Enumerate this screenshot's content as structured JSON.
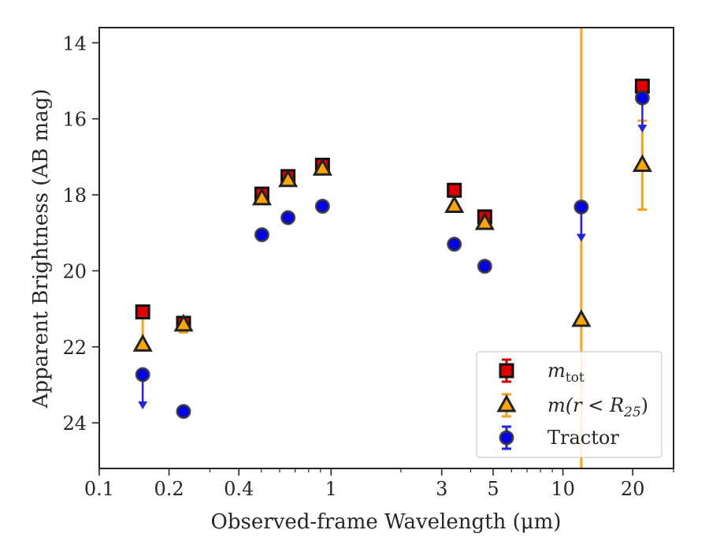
{
  "chart_data": {
    "type": "scatter",
    "xlabel": "Observed-frame Wavelength (μm)",
    "ylabel": "Apparent Brightness (AB mag)",
    "xscale": "log",
    "xlim": [
      0.1,
      30
    ],
    "ylim": [
      25.2,
      13.6
    ],
    "y_inverted": true,
    "grid": false,
    "legend_position": "bottom-right",
    "x_ticks": [
      {
        "value": 0.1,
        "label": "0.1"
      },
      {
        "value": 0.2,
        "label": "0.2"
      },
      {
        "value": 0.4,
        "label": "0.4"
      },
      {
        "value": 1,
        "label": "1"
      },
      {
        "value": 3,
        "label": "3"
      },
      {
        "value": 5,
        "label": "5"
      },
      {
        "value": 10,
        "label": "10"
      },
      {
        "value": 20,
        "label": "20"
      }
    ],
    "y_ticks": [
      {
        "value": 14,
        "label": "14"
      },
      {
        "value": 16,
        "label": "16"
      },
      {
        "value": 18,
        "label": "18"
      },
      {
        "value": 20,
        "label": "20"
      },
      {
        "value": 22,
        "label": "22"
      },
      {
        "value": 24,
        "label": "24"
      }
    ],
    "series": [
      {
        "key": "mtot",
        "legend_main": "m",
        "legend_sub": "tot",
        "marker": "square",
        "face_color": "#e00000",
        "edge_color": "#111111",
        "errbar_color": "#d40000",
        "points": [
          {
            "x": 0.154,
            "y": 21.08
          },
          {
            "x": 0.231,
            "y": 21.38
          },
          {
            "x": 0.503,
            "y": 17.98
          },
          {
            "x": 0.652,
            "y": 17.52
          },
          {
            "x": 0.918,
            "y": 17.22
          },
          {
            "x": 3.4,
            "y": 17.88
          },
          {
            "x": 4.6,
            "y": 18.58
          },
          {
            "x": 22.0,
            "y": 15.14
          }
        ]
      },
      {
        "key": "mr25",
        "legend_main": "m(r < R",
        "legend_sub": "25",
        "legend_tail": ")",
        "marker": "triangle",
        "face_color": "#ffa500",
        "edge_color": "#222222",
        "errbar_color": "#f5a31a",
        "points": [
          {
            "x": 0.154,
            "y": 21.95,
            "err_up": 0.92,
            "err_down": 0.0
          },
          {
            "x": 0.231,
            "y": 21.42,
            "err_up": 0.0,
            "err_down": 0.2
          },
          {
            "x": 0.503,
            "y": 18.1
          },
          {
            "x": 0.652,
            "y": 17.62
          },
          {
            "x": 0.918,
            "y": 17.32
          },
          {
            "x": 3.4,
            "y": 18.3
          },
          {
            "x": 4.6,
            "y": 18.75
          },
          {
            "x": 12.0,
            "y": 21.3,
            "err_up": 30,
            "err_down": 30
          },
          {
            "x": 22.0,
            "y": 17.22,
            "err_up": 1.17,
            "err_down": 1.17
          }
        ]
      },
      {
        "key": "tractor",
        "legend_main": "Tractor",
        "marker": "circle",
        "face_color": "#0000ee",
        "edge_color": "#333333",
        "errbar_color": "#2424e0",
        "points": [
          {
            "x": 0.154,
            "y": 22.73,
            "upper_limit": true
          },
          {
            "x": 0.231,
            "y": 23.7
          },
          {
            "x": 0.503,
            "y": 19.05
          },
          {
            "x": 0.652,
            "y": 18.6
          },
          {
            "x": 0.918,
            "y": 18.3
          },
          {
            "x": 3.4,
            "y": 19.3
          },
          {
            "x": 4.6,
            "y": 19.88
          },
          {
            "x": 12.0,
            "y": 18.32,
            "upper_limit": true
          },
          {
            "x": 22.0,
            "y": 15.45,
            "upper_limit": true
          }
        ]
      }
    ]
  }
}
